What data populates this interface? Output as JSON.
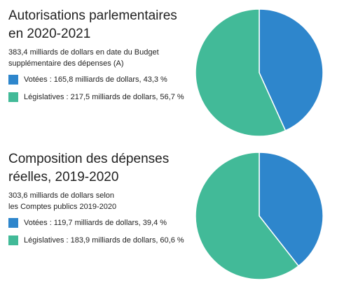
{
  "colors": {
    "votees": "#2e86cc",
    "legislatives": "#42ba98"
  },
  "chart_data": [
    {
      "type": "pie",
      "title": [
        "Autorisations parlementaires",
        "en 2020-2021"
      ],
      "subtitle": [
        "383,4 milliards de dollars en date du Budget",
        "supplémentaire des dépenses (A)"
      ],
      "slices": [
        {
          "name": "Votées",
          "value": 165.8,
          "percent": 43.3,
          "label": "Votées : 165,8 milliards de dollars, 43,3 %"
        },
        {
          "name": "Législatives",
          "value": 217.5,
          "percent": 56.7,
          "label": "Législatives : 217,5 milliards de dollars, 56,7 %"
        }
      ]
    },
    {
      "type": "pie",
      "title": [
        "Composition des dépenses",
        "réelles, 2019-2020"
      ],
      "subtitle": [
        "303,6 milliards de dollars selon",
        "les Comptes publics 2019-2020"
      ],
      "slices": [
        {
          "name": "Votées",
          "value": 119.7,
          "percent": 39.4,
          "label": "Votées : 119,7 milliards de dollars, 39,4 %"
        },
        {
          "name": "Législatives",
          "value": 183.9,
          "percent": 60.6,
          "label": "Législatives : 183,9 milliards de dollars, 60,6 %"
        }
      ]
    }
  ]
}
